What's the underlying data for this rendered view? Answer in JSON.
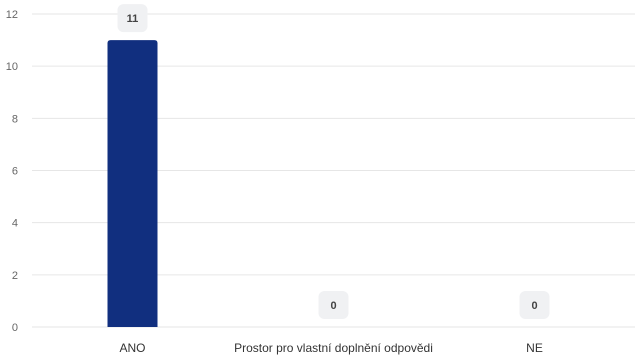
{
  "chart_data": {
    "type": "bar",
    "categories": [
      "ANO",
      "Prostor pro vlastní doplnění odpovědi",
      "NE"
    ],
    "values": [
      11,
      0,
      0
    ],
    "data_labels": [
      "11",
      "0",
      "0"
    ],
    "ylim": [
      0,
      12
    ],
    "yticks": [
      0,
      2,
      4,
      6,
      8,
      10,
      12
    ],
    "ytick_labels": [
      "0",
      "2",
      "4",
      "6",
      "8",
      "10",
      "12"
    ],
    "grid": true,
    "bar_color": "#112f7f",
    "grid_color": "#e6e6e6",
    "label_bg_color": "#f0f1f3"
  }
}
